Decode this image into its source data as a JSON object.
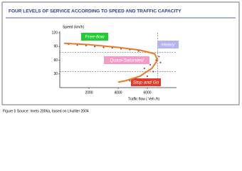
{
  "chart_data": {
    "type": "scatter",
    "title": "FOUR LEVELS OF SERVICE ACCORDING TO SPEED AND TRAFFIC CAPACITY",
    "y_label": "Speed (km/h)",
    "x_label": "Traffic flow ( Veh /h)",
    "caption": "Figure 5 Source: Inrets 2006a, based on Lhuillier 2004",
    "xlim": [
      0,
      8000
    ],
    "xticks": [
      2000,
      4000,
      6000
    ],
    "ylim": [
      0,
      120
    ],
    "yticks": [
      30,
      60,
      90,
      120
    ],
    "series": [
      {
        "color": "#7a2a7a",
        "x": [
          600,
          1200,
          1800,
          2400,
          3000,
          3600,
          4200,
          4800,
          5400,
          6000,
          6500,
          6800,
          6600,
          6200,
          5800,
          6400,
          6000,
          5200,
          4800,
          6900
        ],
        "values": [
          95,
          93,
          92,
          90,
          88,
          87,
          85,
          83,
          80,
          78,
          74,
          68,
          60,
          50,
          42,
          35,
          25,
          20,
          15,
          55
        ]
      },
      {
        "color": "#f07820",
        "line": true,
        "x": [
          300,
          2000,
          4000,
          5500,
          6500,
          6700,
          6300,
          5500,
          4500,
          4000
        ],
        "values": [
          97,
          94,
          88,
          82,
          74,
          60,
          42,
          25,
          15,
          12
        ]
      }
    ],
    "reference_lines": {
      "y": [
        77,
        35
      ],
      "x": [
        6700
      ]
    },
    "annotations": [
      {
        "text": "Free-flow",
        "color": "#22cc33"
      },
      {
        "text": "Heavy",
        "color": "#b4b4f4"
      },
      {
        "text": "Quasi-Saturated",
        "color": "#f29cc8"
      },
      {
        "text": "Stop and Go",
        "color": "#e23a2a"
      }
    ]
  }
}
